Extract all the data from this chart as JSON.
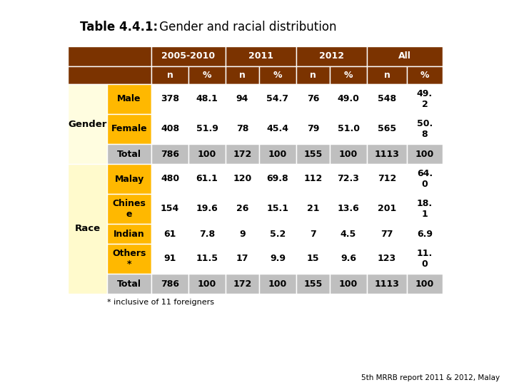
{
  "title_bold": "Table 4.4.1:",
  "title_normal": " Gender and racial distribution",
  "header_bg": "#7B3300",
  "subcat_bg": "#FFB800",
  "total_bg": "#BFBFBF",
  "gender_group_bg": "#FFFDE0",
  "race_group_bg": "#FFFACC",
  "white_bg": "#FFFFFF",
  "footnote": "* inclusive of 11 foreigners",
  "source": "5th MRRB report 2011 & 2012, Malay",
  "gender_rows": [
    {
      "label": "Male",
      "values": [
        "378",
        "48.1",
        "94",
        "54.7",
        "76",
        "49.0",
        "548",
        "49.\n2"
      ],
      "is_total": false
    },
    {
      "label": "Female",
      "values": [
        "408",
        "51.9",
        "78",
        "45.4",
        "79",
        "51.0",
        "565",
        "50.\n8"
      ],
      "is_total": false
    },
    {
      "label": "Total",
      "values": [
        "786",
        "100",
        "172",
        "100",
        "155",
        "100",
        "1113",
        "100"
      ],
      "is_total": true
    }
  ],
  "race_rows": [
    {
      "label": "Malay",
      "values": [
        "480",
        "61.1",
        "120",
        "69.8",
        "112",
        "72.3",
        "712",
        "64.\n0"
      ],
      "is_total": false
    },
    {
      "label": "Chines\ne",
      "values": [
        "154",
        "19.6",
        "26",
        "15.1",
        "21",
        "13.6",
        "201",
        "18.\n1"
      ],
      "is_total": false
    },
    {
      "label": "Indian",
      "values": [
        "61",
        "7.8",
        "9",
        "5.2",
        "7",
        "4.5",
        "77",
        "6.9"
      ],
      "is_total": false
    },
    {
      "label": "Others\n*",
      "values": [
        "91",
        "11.5",
        "17",
        "9.9",
        "15",
        "9.6",
        "123",
        "11.\n0"
      ],
      "is_total": false
    },
    {
      "label": "Total",
      "values": [
        "786",
        "100",
        "172",
        "100",
        "155",
        "100",
        "1113",
        "100"
      ],
      "is_total": true
    }
  ]
}
